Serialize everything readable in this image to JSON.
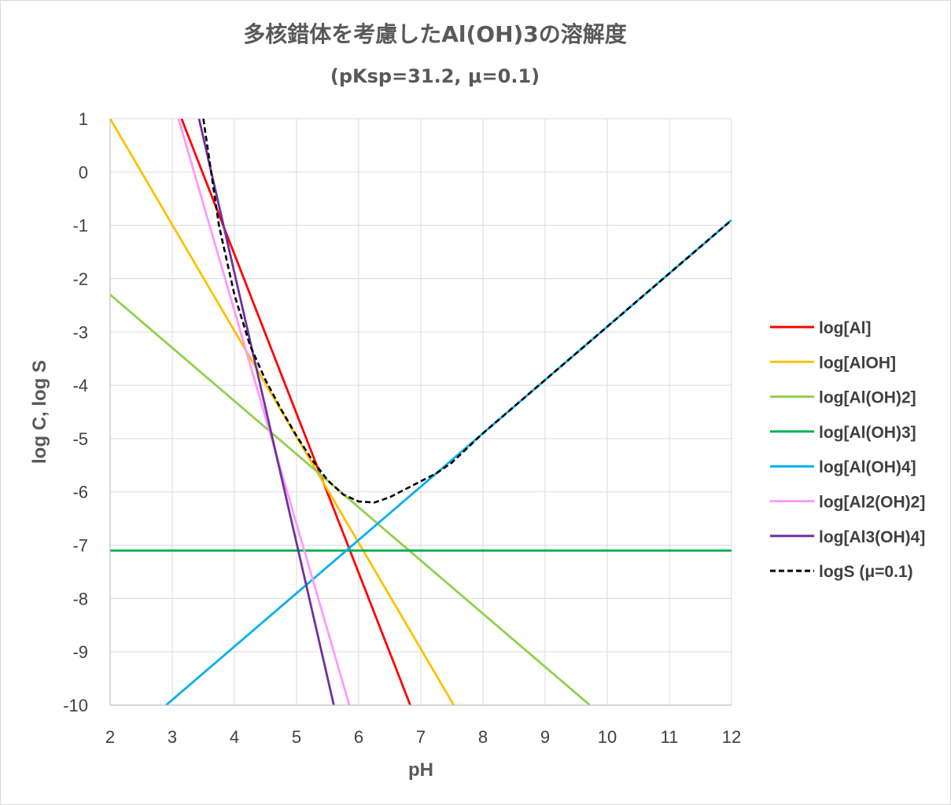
{
  "chart_data": {
    "type": "line",
    "title": "多核錯体を考慮したAl(OH)3の溶解度",
    "subtitle": "(pKsp=31.2, μ=0.1)",
    "xlabel": "pH",
    "ylabel": "log C, log S",
    "xlim": [
      2,
      12
    ],
    "ylim": [
      -10,
      1
    ],
    "xticks": [
      2,
      3,
      4,
      5,
      6,
      7,
      8,
      9,
      10,
      11,
      12
    ],
    "yticks": [
      1,
      0,
      -1,
      -2,
      -3,
      -4,
      -5,
      -6,
      -7,
      -8,
      -9,
      -10
    ],
    "grid": true,
    "legend_position": "right",
    "series": [
      {
        "name": "log[Al]",
        "color": "#ff0000",
        "dash": false,
        "x": [
          3.15,
          6.83
        ],
        "y": [
          1,
          -10
        ]
      },
      {
        "name": "log[AlOH]",
        "color": "#ffc000",
        "dash": false,
        "x": [
          2,
          7.53
        ],
        "y": [
          1,
          -10
        ]
      },
      {
        "name": "log[Al(OH)2]",
        "color": "#92d050",
        "dash": false,
        "x": [
          2,
          9.72
        ],
        "y": [
          -2.3,
          -10
        ]
      },
      {
        "name": "log[Al(OH)3]",
        "color": "#00b050",
        "dash": false,
        "x": [
          2,
          12
        ],
        "y": [
          -7.1,
          -7.1
        ]
      },
      {
        "name": "log[Al(OH)4]",
        "color": "#00b0f0",
        "dash": false,
        "x": [
          2.9,
          12
        ],
        "y": [
          -10,
          -0.9
        ]
      },
      {
        "name": "log[Al2(OH)2]",
        "color": "#ff99ff",
        "dash": false,
        "x": [
          3.1,
          5.85
        ],
        "y": [
          1,
          -10
        ]
      },
      {
        "name": "log[Al3(OH)4]",
        "color": "#7030a0",
        "dash": false,
        "x": [
          3.43,
          5.6
        ],
        "y": [
          1,
          -10
        ]
      },
      {
        "name": "logS (μ=0.1)",
        "color": "#000000",
        "dash": true,
        "x": [
          3.5,
          3.75,
          4.0,
          4.25,
          4.5,
          4.75,
          5.0,
          5.25,
          5.5,
          5.75,
          6.0,
          6.25,
          6.5,
          6.75,
          7.0,
          7.25,
          7.5,
          8.0,
          9.0,
          10.0,
          11.0,
          12.0
        ],
        "y": [
          1.0,
          -1.0,
          -2.3,
          -3.25,
          -3.9,
          -4.45,
          -4.95,
          -5.4,
          -5.78,
          -6.05,
          -6.18,
          -6.2,
          -6.1,
          -5.95,
          -5.8,
          -5.65,
          -5.45,
          -4.9,
          -3.9,
          -2.9,
          -1.9,
          -0.9
        ]
      }
    ]
  }
}
